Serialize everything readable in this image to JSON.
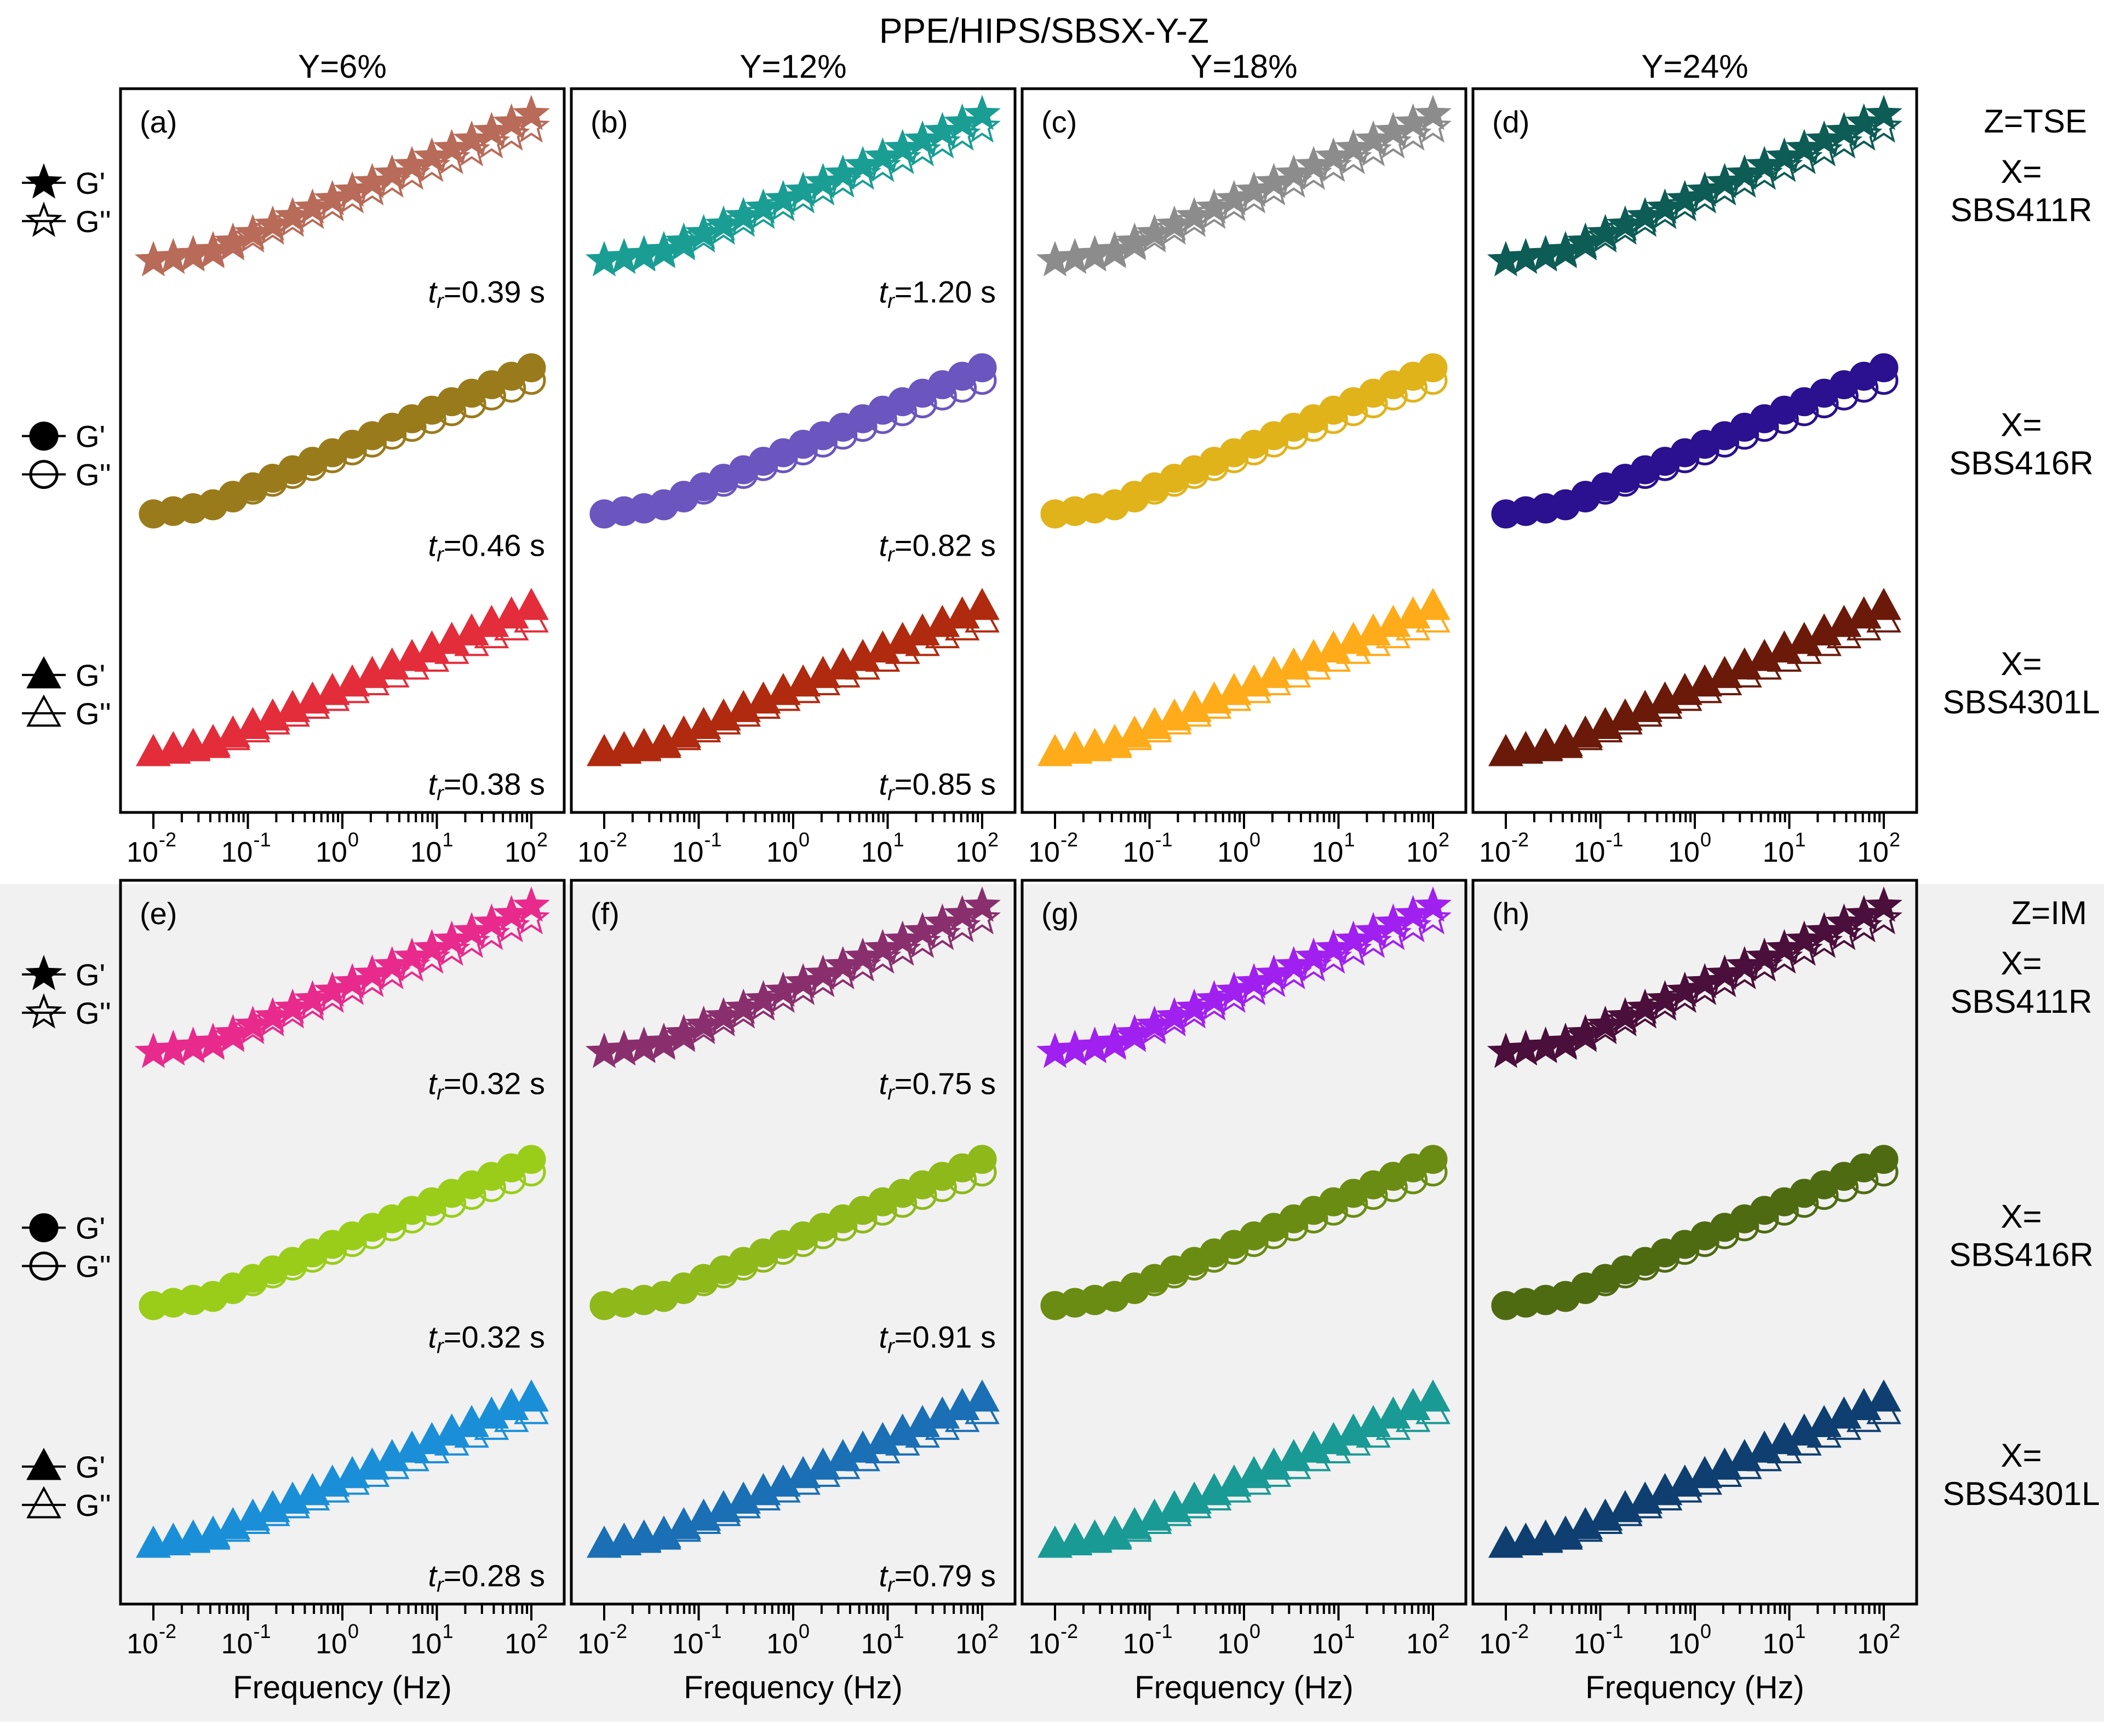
{
  "title": "PPE/HIPS/SBSX-Y-Z",
  "columns": [
    "Y=6%",
    "Y=12%",
    "Y=18%",
    "Y=24%"
  ],
  "row_labels": [
    "Z=TSE",
    "Z=IM"
  ],
  "x_names": [
    "X=\nSBS411R",
    "X=\nSBS416R",
    "X=\nSBS4301L"
  ],
  "x_name_lines": [
    [
      "X=",
      "SBS411R"
    ],
    [
      "X=",
      "SBS416R"
    ],
    [
      "X=",
      "SBS4301L"
    ]
  ],
  "legend": {
    "gprime": "G'",
    "gdoubleprime": "G''",
    "shapes": [
      "star",
      "circle",
      "triangle"
    ]
  },
  "x_axis_label": "Frequency (Hz)",
  "x_tick_exponents": [
    "-2",
    "-1",
    "0",
    "1",
    "2"
  ],
  "tau_prefix": "t",
  "tau_sub": "r",
  "panel_labels": [
    "(a)",
    "(b)",
    "(c)",
    "(d)",
    "(e)",
    "(f)",
    "(g)",
    "(h)"
  ],
  "tau_values": [
    [
      "=0.39 s",
      "=0.46 s",
      "=0.38 s"
    ],
    [
      "=1.20 s",
      "=0.82 s",
      "=0.85 s"
    ],
    [
      null,
      null,
      null
    ],
    [
      null,
      null,
      null
    ],
    [
      "=0.32 s",
      "=0.32 s",
      "=0.28 s"
    ],
    [
      "=0.75 s",
      "=0.91 s",
      "=0.79 s"
    ],
    [
      null,
      null,
      null
    ],
    [
      null,
      null,
      null
    ]
  ],
  "colors": [
    [
      "#b86b58",
      "#9a7b1c",
      "#e32d3a"
    ],
    [
      "#1a9e94",
      "#6b55bf",
      "#b02a0f"
    ],
    [
      "#8c8c8c",
      "#e0b31b",
      "#ffab1a"
    ],
    [
      "#0d5c55",
      "#2b108f",
      "#6b1a0a"
    ],
    [
      "#e82a8c",
      "#9acd1a",
      "#1a8fd8"
    ],
    [
      "#8a2f6e",
      "#8fb81a",
      "#1a6fb5"
    ],
    [
      "#a020f0",
      "#6b8c12",
      "#1a9a94"
    ],
    [
      "#4a0f3a",
      "#4f6b12",
      "#0e3f70"
    ]
  ],
  "chart_data": {
    "type": "scatter",
    "x_scale": "log",
    "x_range": [
      0.01,
      100
    ],
    "y_scale": "log (arbitrary units, vertically offset per series)",
    "y_ticks_shown": false,
    "grid": false,
    "legend_placement": "left of panels",
    "panels": [
      {
        "label": "(a)",
        "Y": "Y=6%",
        "Z": "Z=TSE",
        "series": [
          {
            "x_material": "SBS411R",
            "gp": [
              0.2,
              0.9
            ],
            "gpp": [
              0.18,
              0.86
            ]
          },
          {
            "x_material": "SBS416R",
            "gp": [
              0.55,
              0.9
            ],
            "gpp": [
              0.54,
              0.86
            ]
          },
          {
            "x_material": "SBS4301L",
            "gp": [
              0.88,
              0.56
            ],
            "gpp": [
              0.88,
              0.59
            ]
          }
        ]
      },
      {
        "label": "(b)",
        "Y": "Y=12%",
        "Z": "Z=TSE",
        "series": [
          {
            "x_material": "SBS411R",
            "gp": [
              0.23,
              0.9
            ],
            "gpp": [
              0.19,
              0.86
            ]
          },
          {
            "x_material": "SBS416R",
            "gp": [
              0.55,
              0.9
            ],
            "gpp": [
              0.53,
              0.85
            ]
          },
          {
            "x_material": "SBS4301L",
            "gp": [
              0.88,
              0.56
            ],
            "gpp": [
              0.86,
              0.59
            ]
          }
        ]
      },
      {
        "label": "(c)",
        "Y": "Y=18%",
        "Z": "Z=TSE",
        "series": [
          {
            "x_material": "SBS411R",
            "gp": [
              0.36,
              0.9
            ],
            "gpp": [
              0.27,
              0.85
            ]
          },
          {
            "x_material": "SBS416R",
            "gp": [
              0.6,
              0.9
            ],
            "gpp": [
              0.55,
              0.86
            ]
          },
          {
            "x_material": "SBS4301L",
            "gp": [
              0.88,
              0.56
            ],
            "gpp": [
              0.84,
              0.59
            ]
          }
        ]
      },
      {
        "label": "(d)",
        "Y": "Y=24%",
        "Z": "Z=TSE",
        "series": [
          {
            "x_material": "SBS411R",
            "gp": [
              0.4,
              0.9
            ],
            "gpp": [
              0.27,
              0.85
            ]
          },
          {
            "x_material": "SBS416R",
            "gp": [
              0.67,
              0.9
            ],
            "gpp": [
              0.59,
              0.85
            ]
          },
          {
            "x_material": "SBS4301L",
            "gp": [
              0.92,
              0.56
            ],
            "gpp": [
              0.85,
              0.59
            ]
          }
        ]
      },
      {
        "label": "(e)",
        "Y": "Y=6%",
        "Z": "Z=IM",
        "series": [
          {
            "x_material": "SBS411R",
            "gp": [
              0.26,
              0.91
            ],
            "gpp": [
              0.25,
              0.87
            ]
          },
          {
            "x_material": "SBS416R",
            "gp": [
              0.55,
              0.91
            ],
            "gpp": [
              0.54,
              0.87
            ]
          },
          {
            "x_material": "SBS4301L",
            "gp": [
              0.84,
              0.57
            ],
            "gpp": [
              0.84,
              0.6
            ]
          }
        ]
      },
      {
        "label": "(f)",
        "Y": "Y=12%",
        "Z": "Z=IM",
        "series": [
          {
            "x_material": "SBS411R",
            "gp": [
              0.26,
              0.91
            ],
            "gpp": [
              0.25,
              0.87
            ]
          },
          {
            "x_material": "SBS416R",
            "gp": [
              0.55,
              0.91
            ],
            "gpp": [
              0.54,
              0.87
            ]
          },
          {
            "x_material": "SBS4301L",
            "gp": [
              0.88,
              0.57
            ],
            "gpp": [
              0.86,
              0.6
            ]
          }
        ]
      },
      {
        "label": "(g)",
        "Y": "Y=18%",
        "Z": "Z=IM",
        "series": [
          {
            "x_material": "SBS411R",
            "gp": [
              0.37,
              0.91
            ],
            "gpp": [
              0.25,
              0.87
            ]
          },
          {
            "x_material": "SBS416R",
            "gp": [
              0.6,
              0.91
            ],
            "gpp": [
              0.55,
              0.87
            ]
          },
          {
            "x_material": "SBS4301L",
            "gp": [
              0.89,
              0.57
            ],
            "gpp": [
              0.84,
              0.6
            ]
          }
        ]
      },
      {
        "label": "(h)",
        "Y": "Y=24%",
        "Z": "Z=IM",
        "series": [
          {
            "x_material": "SBS411R",
            "gp": [
              0.37,
              0.91
            ],
            "gpp": [
              0.27,
              0.87
            ]
          },
          {
            "x_material": "SBS416R",
            "gp": [
              0.6,
              0.91
            ],
            "gpp": [
              0.55,
              0.87
            ]
          },
          {
            "x_material": "SBS4301L",
            "gp": [
              0.89,
              0.57
            ],
            "gpp": [
              0.84,
              0.6
            ]
          }
        ]
      }
    ]
  }
}
